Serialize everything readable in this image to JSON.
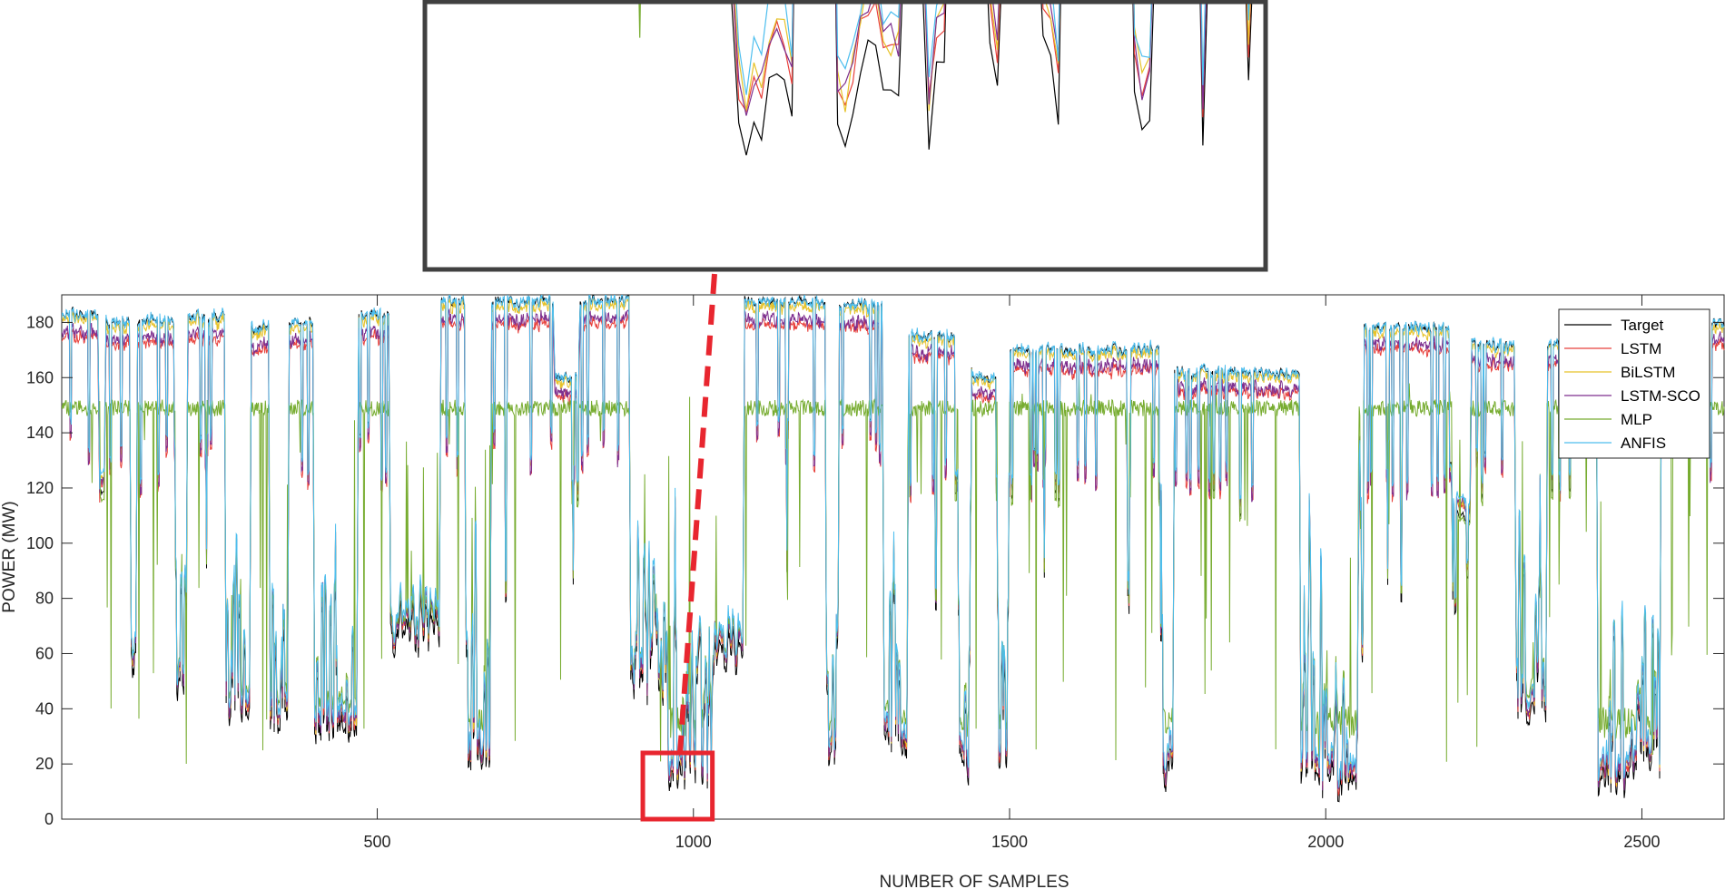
{
  "chart_data": {
    "type": "line",
    "xlabel": "NUMBER OF SAMPLES",
    "ylabel": "POWER (MW)",
    "xlim": [
      1,
      2630
    ],
    "ylim": [
      0,
      190
    ],
    "xticks": [
      500,
      1000,
      1500,
      2000,
      2500
    ],
    "yticks": [
      0,
      20,
      40,
      60,
      80,
      100,
      120,
      140,
      160,
      180
    ],
    "xtick_labels": [
      "500",
      "1000",
      "1500",
      "2000",
      "2500"
    ],
    "ytick_labels": [
      "0",
      "20",
      "40",
      "60",
      "80",
      "100",
      "120",
      "140",
      "160",
      "180"
    ],
    "legend_position": "top-right",
    "grid": false,
    "series": [
      {
        "name": "Target",
        "color": "#000000"
      },
      {
        "name": "LSTM",
        "color": "#e8413c"
      },
      {
        "name": "BiLSTM",
        "color": "#e6c229"
      },
      {
        "name": "LSTM-SCO",
        "color": "#7e2f8e"
      },
      {
        "name": "MLP",
        "color": "#77ac30"
      },
      {
        "name": "ANFIS",
        "color": "#4dbeee"
      }
    ],
    "zoom_region": {
      "x_range": [
        920,
        1030
      ],
      "y_range": [
        0,
        24
      ]
    },
    "inset_zoom": true
  }
}
